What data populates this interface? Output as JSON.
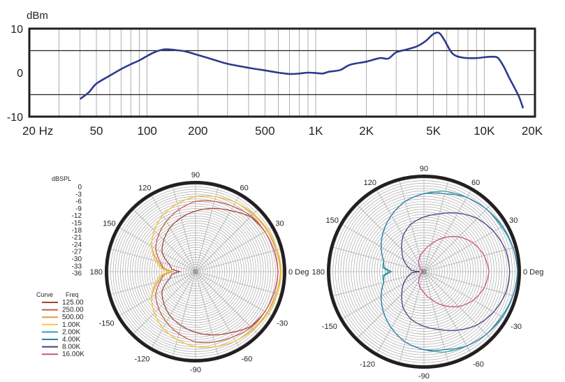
{
  "chart_data": [
    {
      "type": "line",
      "ylabel": "dBm",
      "x_scale": "log",
      "xlim": [
        20,
        20000
      ],
      "ylim": [
        -10,
        10
      ],
      "x_ticks": [
        {
          "value": 20,
          "label": "20 Hz"
        },
        {
          "value": 50,
          "label": "50"
        },
        {
          "value": 100,
          "label": "100"
        },
        {
          "value": 200,
          "label": "200"
        },
        {
          "value": 500,
          "label": "500"
        },
        {
          "value": 1000,
          "label": "1K"
        },
        {
          "value": 2000,
          "label": "2K"
        },
        {
          "value": 5000,
          "label": "5K"
        },
        {
          "value": 10000,
          "label": "10K"
        },
        {
          "value": 20000,
          "label": "20K"
        }
      ],
      "y_ticks": [
        {
          "value": 10,
          "label": "10"
        },
        {
          "value": 0,
          "label": "0"
        },
        {
          "value": -10,
          "label": "-10"
        }
      ],
      "reference_lines": [
        5,
        -5
      ],
      "grid": true,
      "series": [
        {
          "color": "#2e3a8c",
          "x": [
            40,
            45,
            50,
            60,
            70,
            80,
            90,
            100,
            110,
            120,
            130,
            150,
            170,
            200,
            250,
            300,
            400,
            500,
            600,
            700,
            800,
            900,
            1000,
            1100,
            1200,
            1400,
            1600,
            2000,
            2400,
            2700,
            3000,
            3500,
            4000,
            4500,
            5000,
            5400,
            5800,
            6500,
            7500,
            9000,
            10000,
            11000,
            12000,
            13000,
            14000,
            16000,
            17000
          ],
          "y": [
            -6,
            -4.5,
            -2.5,
            -0.7,
            0.8,
            1.9,
            2.8,
            3.8,
            4.6,
            5.1,
            5.3,
            5.1,
            4.8,
            4.0,
            2.9,
            2.0,
            1.1,
            0.5,
            0.0,
            -0.3,
            -0.2,
            0.0,
            -0.1,
            -0.2,
            0.2,
            0.6,
            1.8,
            2.5,
            3.3,
            3.2,
            4.6,
            5.3,
            6.0,
            7.2,
            8.8,
            9.0,
            7.4,
            4.3,
            3.4,
            3.3,
            3.5,
            3.6,
            3.4,
            1.5,
            -1.0,
            -5.3,
            -8.1
          ]
        }
      ]
    },
    {
      "type": "polar",
      "r_label": "dBSPL",
      "r_range": [
        -36,
        0
      ],
      "r_ticks": [
        "0",
        "-3",
        "-6",
        "-9",
        "-12",
        "-15",
        "-18",
        "-21",
        "-24",
        "-27",
        "-30",
        "-33",
        "-36"
      ],
      "angle_labels": [
        "0 Deg",
        "30",
        "60",
        "90",
        "120",
        "150",
        "180",
        "-150",
        "-120",
        "-90",
        "-60",
        "-30"
      ],
      "legend": {
        "headers": [
          "Curve",
          "Freq"
        ]
      },
      "series": [
        {
          "name": "125.00",
          "color": "#a0453a",
          "angle": [
            0,
            30,
            45,
            60,
            75,
            90,
            120,
            150,
            165,
            180
          ],
          "r": [
            -2,
            -3,
            -4,
            -7,
            -9,
            -11,
            -15,
            -20,
            -25,
            -27
          ]
        },
        {
          "name": "250.00",
          "color": "#c85a4e",
          "angle": [
            0,
            30,
            45,
            60,
            90,
            120,
            150,
            165,
            180
          ],
          "r": [
            -2,
            -3,
            -3.5,
            -5,
            -7,
            -12,
            -17,
            -21,
            -24
          ]
        },
        {
          "name": "500.00",
          "color": "#e89a3c",
          "angle": [
            0,
            30,
            60,
            90,
            120,
            150,
            165,
            180
          ],
          "r": [
            -1,
            -2,
            -3,
            -5,
            -9,
            -15,
            -20,
            -24
          ]
        },
        {
          "name": "1.00K",
          "color": "#f0cc40",
          "angle": [
            0,
            30,
            60,
            90,
            120,
            150,
            165,
            180
          ],
          "r": [
            -0.5,
            -1.5,
            -3,
            -5,
            -9,
            -15,
            -19,
            -23
          ]
        }
      ]
    },
    {
      "type": "polar",
      "angle_labels": [
        "0 Deg",
        "30",
        "60",
        "90",
        "120",
        "150",
        "180",
        "-150",
        "-120",
        "-90",
        "-60",
        "-30"
      ],
      "series": [
        {
          "name": "2.00K",
          "color": "#3aa39e",
          "angle": [
            0,
            15,
            30,
            45,
            60,
            75,
            90,
            105,
            120,
            135,
            150,
            165,
            180
          ],
          "r": [
            0,
            -0.5,
            -1,
            -2,
            -3,
            -4,
            -6,
            -8,
            -11,
            -14,
            -17,
            -20,
            -20
          ]
        },
        {
          "name": "4.00K",
          "color": "#2e7fa8",
          "angle": [
            0,
            15,
            30,
            45,
            60,
            75,
            90,
            105,
            120,
            135,
            150,
            165,
            180
          ],
          "r": [
            0,
            -0.5,
            -1.5,
            -2,
            -3,
            -5,
            -6,
            -8,
            -11,
            -14,
            -17,
            -20,
            -21
          ]
        },
        {
          "name": "8.00K",
          "color": "#4d3d82",
          "angle": [
            0,
            15,
            30,
            45,
            60,
            75,
            90,
            105,
            120,
            135,
            150,
            165,
            180
          ],
          "r": [
            -3,
            -3.5,
            -5,
            -7,
            -10,
            -13,
            -15,
            -17,
            -20,
            -24,
            -27,
            -30,
            -32
          ]
        },
        {
          "name": "16.00K",
          "color": "#cc4f8c",
          "angle": [
            0,
            15,
            30,
            45,
            60,
            75,
            90,
            105,
            120,
            135,
            150,
            165,
            180
          ],
          "r": [
            -11,
            -12,
            -14,
            -17,
            -21,
            -25,
            -28,
            -30,
            -32,
            -34,
            -35,
            -35.5,
            -36
          ]
        }
      ]
    }
  ]
}
